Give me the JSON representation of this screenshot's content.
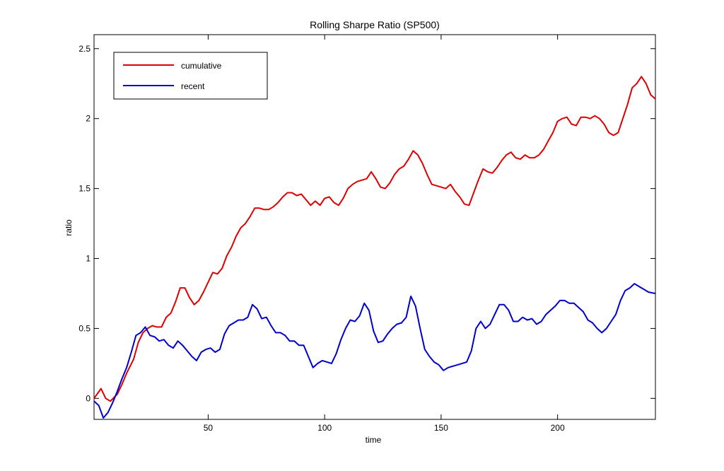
{
  "chart_data": {
    "type": "line",
    "title": "Rolling Sharpe Ratio (SP500)",
    "xlabel": "time",
    "ylabel": "ratio",
    "xlim": [
      1,
      242
    ],
    "ylim": [
      -0.15,
      2.6
    ],
    "xticks": [
      50,
      100,
      150,
      200
    ],
    "yticks": [
      0,
      0.5,
      1,
      1.5,
      2,
      2.5
    ],
    "ytick_labels": [
      "0",
      "0.5",
      "1",
      "1.5",
      "2",
      "2.5"
    ],
    "grid": false,
    "legend_position": "top-left",
    "series": [
      {
        "name": "cumulative",
        "color": "#dd0000",
        "x": [
          1,
          4,
          6,
          8,
          11,
          13,
          15,
          18,
          20,
          22,
          24,
          26,
          28,
          30,
          32,
          34,
          36,
          38,
          40,
          42,
          44,
          46,
          48,
          50,
          52,
          54,
          56,
          58,
          60,
          62,
          64,
          66,
          68,
          70,
          72,
          74,
          76,
          78,
          80,
          82,
          84,
          86,
          88,
          90,
          92,
          94,
          96,
          98,
          100,
          102,
          104,
          106,
          108,
          110,
          112,
          114,
          116,
          118,
          120,
          122,
          124,
          126,
          128,
          130,
          132,
          134,
          136,
          138,
          140,
          142,
          144,
          146,
          148,
          150,
          152,
          154,
          156,
          158,
          160,
          162,
          164,
          166,
          168,
          170,
          172,
          174,
          176,
          178,
          180,
          182,
          184,
          186,
          188,
          190,
          192,
          194,
          196,
          198,
          200,
          202,
          204,
          206,
          208,
          210,
          212,
          214,
          216,
          218,
          220,
          222,
          224,
          226,
          228,
          230,
          232,
          234,
          236,
          238,
          240,
          242
        ],
        "y": [
          0.0,
          0.07,
          0.0,
          -0.02,
          0.03,
          0.1,
          0.18,
          0.28,
          0.4,
          0.47,
          0.5,
          0.52,
          0.51,
          0.51,
          0.58,
          0.61,
          0.69,
          0.79,
          0.79,
          0.72,
          0.67,
          0.7,
          0.76,
          0.83,
          0.9,
          0.89,
          0.93,
          1.02,
          1.08,
          1.16,
          1.22,
          1.25,
          1.3,
          1.36,
          1.36,
          1.35,
          1.35,
          1.37,
          1.4,
          1.44,
          1.47,
          1.47,
          1.45,
          1.46,
          1.42,
          1.38,
          1.41,
          1.38,
          1.43,
          1.44,
          1.4,
          1.38,
          1.43,
          1.5,
          1.53,
          1.55,
          1.56,
          1.57,
          1.62,
          1.57,
          1.51,
          1.5,
          1.54,
          1.6,
          1.64,
          1.66,
          1.71,
          1.77,
          1.74,
          1.68,
          1.6,
          1.53,
          1.52,
          1.51,
          1.5,
          1.53,
          1.48,
          1.44,
          1.39,
          1.38,
          1.47,
          1.56,
          1.64,
          1.62,
          1.61,
          1.65,
          1.7,
          1.74,
          1.76,
          1.72,
          1.71,
          1.74,
          1.72,
          1.72,
          1.74,
          1.78,
          1.84,
          1.9,
          1.98,
          2.0,
          2.01,
          1.96,
          1.95,
          2.01,
          2.01,
          2.0,
          2.02,
          2.0,
          1.96,
          1.9,
          1.88,
          1.9,
          2.0,
          2.1,
          2.22,
          2.25,
          2.3,
          2.25,
          2.17,
          2.14
        ]
      },
      {
        "name": "recent",
        "color": "#0000cc",
        "x": [
          1,
          3,
          5,
          7,
          9,
          11,
          13,
          15,
          17,
          19,
          21,
          23,
          25,
          27,
          29,
          31,
          33,
          35,
          37,
          39,
          41,
          43,
          45,
          47,
          49,
          51,
          53,
          55,
          57,
          59,
          61,
          63,
          65,
          67,
          69,
          71,
          73,
          75,
          77,
          79,
          81,
          83,
          85,
          87,
          89,
          91,
          93,
          95,
          97,
          99,
          101,
          103,
          105,
          107,
          109,
          111,
          113,
          115,
          117,
          119,
          121,
          123,
          125,
          127,
          129,
          131,
          133,
          135,
          137,
          139,
          141,
          143,
          145,
          147,
          149,
          151,
          153,
          155,
          157,
          159,
          161,
          163,
          165,
          167,
          169,
          171,
          173,
          175,
          177,
          179,
          181,
          183,
          185,
          187,
          189,
          191,
          193,
          195,
          197,
          199,
          201,
          203,
          205,
          207,
          209,
          211,
          213,
          215,
          217,
          219,
          221,
          223,
          225,
          227,
          229,
          231,
          233,
          235,
          237,
          239,
          242
        ],
        "y": [
          -0.02,
          -0.05,
          -0.14,
          -0.1,
          -0.03,
          0.05,
          0.14,
          0.22,
          0.33,
          0.45,
          0.47,
          0.51,
          0.45,
          0.44,
          0.41,
          0.42,
          0.38,
          0.36,
          0.41,
          0.38,
          0.34,
          0.3,
          0.27,
          0.33,
          0.35,
          0.36,
          0.33,
          0.35,
          0.46,
          0.52,
          0.54,
          0.56,
          0.56,
          0.58,
          0.67,
          0.64,
          0.57,
          0.58,
          0.52,
          0.47,
          0.47,
          0.45,
          0.41,
          0.41,
          0.38,
          0.38,
          0.3,
          0.22,
          0.25,
          0.27,
          0.26,
          0.25,
          0.32,
          0.42,
          0.5,
          0.56,
          0.55,
          0.59,
          0.68,
          0.63,
          0.48,
          0.4,
          0.41,
          0.46,
          0.5,
          0.53,
          0.54,
          0.58,
          0.73,
          0.66,
          0.5,
          0.35,
          0.3,
          0.26,
          0.24,
          0.2,
          0.22,
          0.23,
          0.24,
          0.25,
          0.26,
          0.34,
          0.5,
          0.55,
          0.5,
          0.53,
          0.6,
          0.67,
          0.67,
          0.63,
          0.55,
          0.55,
          0.58,
          0.56,
          0.57,
          0.53,
          0.55,
          0.6,
          0.63,
          0.66,
          0.7,
          0.7,
          0.68,
          0.68,
          0.65,
          0.62,
          0.56,
          0.54,
          0.5,
          0.47,
          0.5,
          0.55,
          0.6,
          0.7,
          0.77,
          0.79,
          0.82,
          0.8,
          0.78,
          0.76,
          0.75
        ]
      }
    ]
  }
}
